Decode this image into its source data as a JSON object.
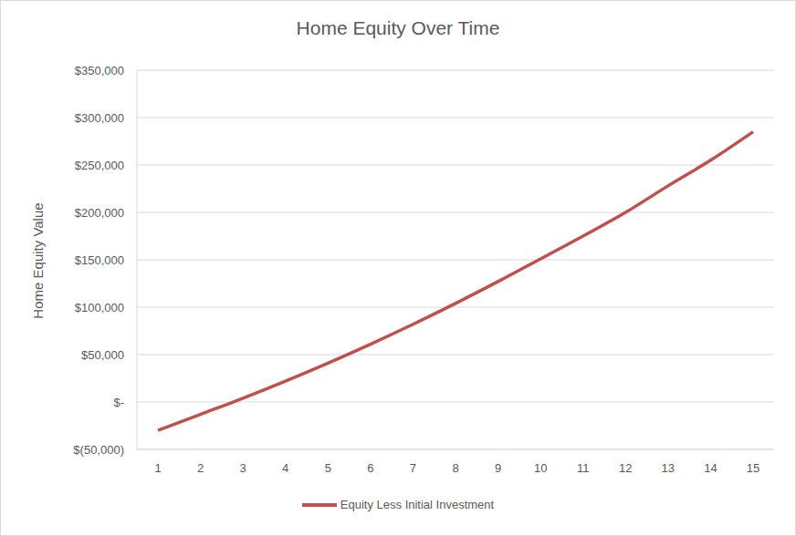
{
  "chart_data": {
    "type": "line",
    "title": "Home Equity Over Time",
    "ylabel": "Home Equity Value",
    "categories": [
      "1",
      "2",
      "3",
      "4",
      "5",
      "6",
      "7",
      "8",
      "9",
      "10",
      "11",
      "12",
      "13",
      "14",
      "15"
    ],
    "series": [
      {
        "name": "Equity Less Initial Investment",
        "color": "#c0504d",
        "values": [
          -30000,
          -13000,
          4000,
          22000,
          41000,
          61000,
          82000,
          104000,
          127000,
          151000,
          175000,
          200000,
          228000,
          255000,
          285000
        ]
      }
    ],
    "ylim": [
      -50000,
      350000
    ],
    "yticks": [
      {
        "value": -50000,
        "label": "$(50,000)"
      },
      {
        "value": 0,
        "label": "$-"
      },
      {
        "value": 50000,
        "label": "$50,000"
      },
      {
        "value": 100000,
        "label": "$100,000"
      },
      {
        "value": 150000,
        "label": "$150,000"
      },
      {
        "value": 200000,
        "label": "$200,000"
      },
      {
        "value": 250000,
        "label": "$250,000"
      },
      {
        "value": 300000,
        "label": "$300,000"
      },
      {
        "value": 350000,
        "label": "$350,000"
      }
    ],
    "grid": true,
    "legend": "bottom"
  }
}
